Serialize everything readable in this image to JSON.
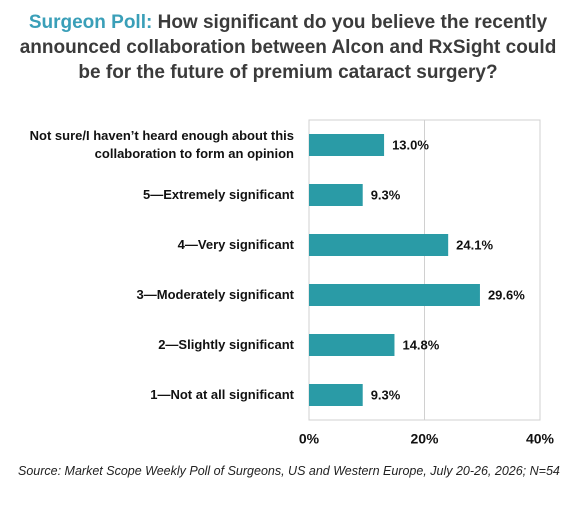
{
  "chart_data": {
    "type": "barh",
    "title_lead": "Surgeon Poll:",
    "title": "How significant do you believe the recently announced collaboration between Alcon and RxSight could be for the future of premium cataract surgery?",
    "categories": [
      "Not sure/I haven’t heard enough about this collaboration to form an opinion",
      "5—Extremely significant",
      "4—Very significant",
      "3—Moderately significant",
      "2—Slightly significant",
      "1—Not at all significant"
    ],
    "values": [
      13.0,
      9.3,
      24.1,
      29.6,
      14.8,
      9.3
    ],
    "value_labels": [
      "13.0%",
      "9.3%",
      "24.1%",
      "29.6%",
      "14.8%",
      "9.3%"
    ],
    "color": "#2a9ba6",
    "xlim": [
      0,
      40
    ],
    "xticks": [
      {
        "value": 0,
        "label": "0%"
      },
      {
        "value": 20,
        "label": "20%"
      },
      {
        "value": 40,
        "label": "40%"
      }
    ],
    "grid": true,
    "source": "Source: Market Scope Weekly Poll of Surgeons, US and Western Europe, July 20-26, 2026; N=54"
  }
}
